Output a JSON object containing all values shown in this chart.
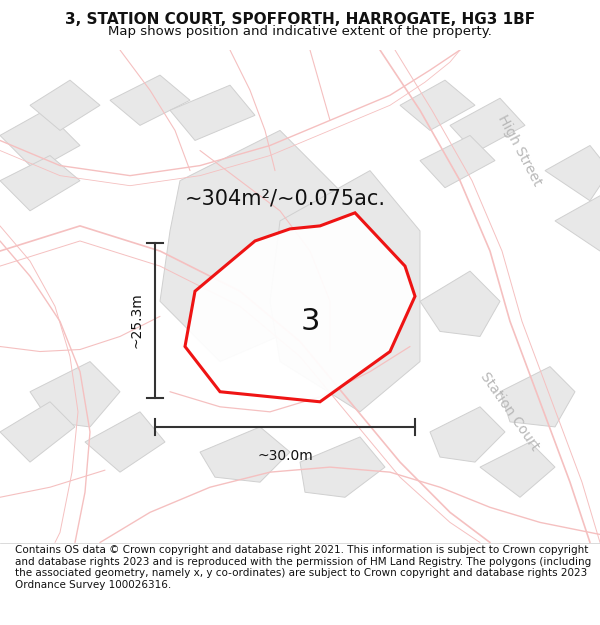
{
  "title_line1": "3, STATION COURT, SPOFFORTH, HARROGATE, HG3 1BF",
  "title_line2": "Map shows position and indicative extent of the property.",
  "area_text": "~304m²/~0.075ac.",
  "dim_width": "~30.0m",
  "dim_height": "~25.3m",
  "plot_label": "3",
  "footer": "Contains OS data © Crown copyright and database right 2021. This information is subject to Crown copyright and database rights 2023 and is reproduced with the permission of HM Land Registry. The polygons (including the associated geometry, namely x, y co-ordinates) are subject to Crown copyright and database rights 2023 Ordnance Survey 100026316.",
  "bg_color": "#f5f5f5",
  "plot_color": "#ee0000",
  "plot_fill": "#ffffff",
  "road_pink": "#f5c0c0",
  "road_pink2": "#f0b0b0",
  "bld_fill": "#e8e8e8",
  "bld_edge": "#d0d0d0",
  "street_color": "#b8b8b8",
  "dim_line_color": "#333333",
  "label_color": "#111111",
  "street_label_station": "Station Court",
  "street_label_high": "High Street",
  "title_fs": 11,
  "subtitle_fs": 9.5,
  "area_fs": 15,
  "label_fs": 22,
  "dim_fs": 10,
  "footer_fs": 7.5
}
